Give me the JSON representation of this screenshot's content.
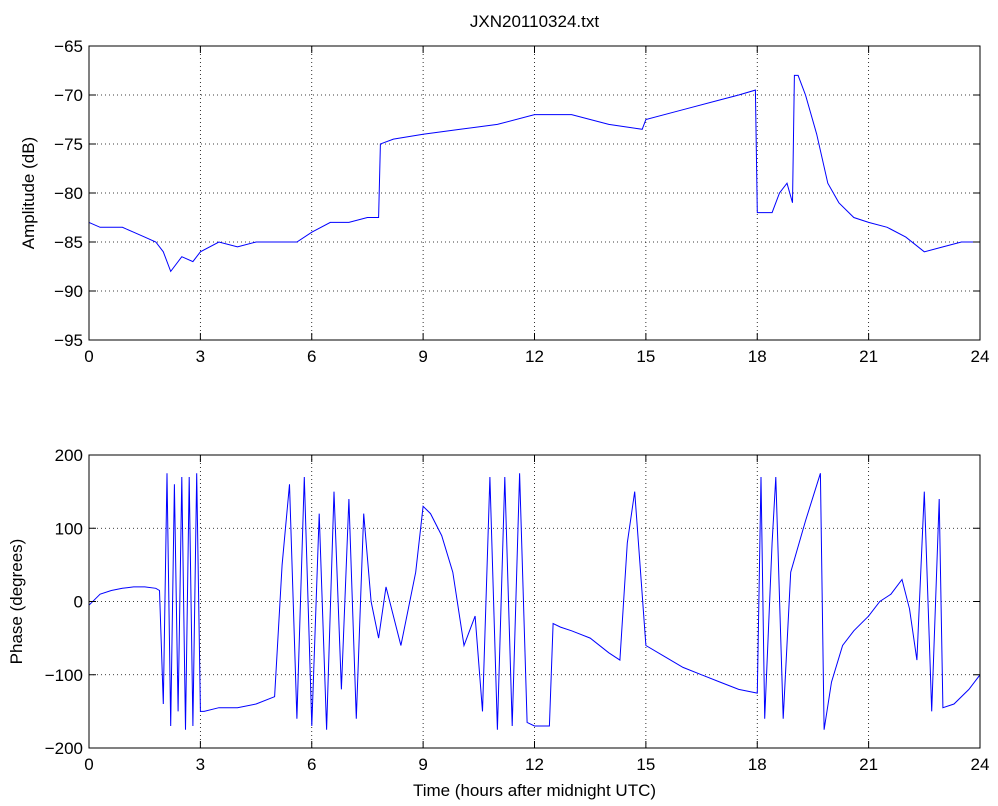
{
  "chart_data": [
    {
      "type": "line",
      "title": "JXN20110324.txt",
      "xlabel": "",
      "ylabel": "Amplitude (dB)",
      "xlim": [
        0,
        24
      ],
      "ylim": [
        -95,
        -65
      ],
      "xticks": [
        0,
        3,
        6,
        9,
        12,
        15,
        18,
        21,
        24
      ],
      "yticks": [
        -95,
        -90,
        -85,
        -80,
        -75,
        -70,
        -65
      ],
      "grid": "dotted",
      "color": "#0000ff",
      "series": [
        {
          "x": [
            0,
            0.3,
            0.6,
            0.9,
            1.2,
            1.5,
            1.8,
            2.0,
            2.2,
            2.5,
            2.8,
            3.0,
            3.5,
            4.0,
            4.5,
            5.0,
            5.3,
            5.6,
            6.0,
            6.5,
            7.0,
            7.5,
            7.8,
            7.85,
            8.2,
            9.0,
            10.0,
            11.0,
            12.0,
            13.0,
            14.0,
            14.9,
            15.0,
            16.0,
            17.0,
            17.5,
            17.95,
            18.0,
            18.2,
            18.4,
            18.6,
            18.8,
            18.95,
            19.0,
            19.1,
            19.3,
            19.6,
            19.9,
            20.2,
            20.6,
            21.0,
            21.5,
            22.0,
            22.5,
            23.0,
            23.5,
            24.0
          ],
          "y": [
            -83,
            -83.5,
            -83.5,
            -83.5,
            -84,
            -84.5,
            -85,
            -86,
            -88,
            -86.5,
            -87,
            -86,
            -85,
            -85.5,
            -85,
            -85,
            -85,
            -85,
            -84,
            -83,
            -83,
            -82.5,
            -82.5,
            -75,
            -74.5,
            -74,
            -73.5,
            -73,
            -72,
            -72,
            -73,
            -73.5,
            -72.5,
            -71.5,
            -70.5,
            -70,
            -69.5,
            -82,
            -82,
            -82,
            -80,
            -79,
            -81,
            -68,
            -68,
            -70,
            -74,
            -79,
            -81,
            -82.5,
            -83,
            -83.5,
            -84.5,
            -86,
            -85.5,
            -85,
            -85
          ]
        }
      ]
    },
    {
      "type": "line",
      "title": "",
      "xlabel": "Time (hours after midnight UTC)",
      "ylabel": "Phase (degrees)",
      "xlim": [
        0,
        24
      ],
      "ylim": [
        -200,
        200
      ],
      "xticks": [
        0,
        3,
        6,
        9,
        12,
        15,
        18,
        21,
        24
      ],
      "yticks": [
        -200,
        -100,
        0,
        100,
        200
      ],
      "grid": "dotted",
      "color": "#0000ff",
      "series": [
        {
          "x": [
            0,
            0.3,
            0.6,
            0.9,
            1.2,
            1.5,
            1.8,
            1.9,
            2.0,
            2.1,
            2.2,
            2.3,
            2.4,
            2.5,
            2.6,
            2.7,
            2.8,
            2.9,
            3.0,
            3.1,
            3.5,
            4.0,
            4.5,
            5.0,
            5.2,
            5.4,
            5.6,
            5.8,
            6.0,
            6.2,
            6.4,
            6.6,
            6.8,
            7.0,
            7.2,
            7.4,
            7.6,
            7.8,
            8.0,
            8.4,
            8.8,
            9.0,
            9.2,
            9.5,
            9.8,
            10.1,
            10.4,
            10.6,
            10.8,
            11.0,
            11.2,
            11.4,
            11.6,
            11.8,
            12.0,
            12.2,
            12.4,
            12.5,
            12.7,
            13.0,
            13.5,
            14.0,
            14.3,
            14.5,
            14.7,
            15.0,
            15.5,
            16.0,
            16.5,
            17.0,
            17.5,
            18.0,
            18.1,
            18.2,
            18.4,
            18.5,
            18.7,
            18.9,
            19.3,
            19.7,
            19.8,
            20.0,
            20.3,
            20.6,
            21.0,
            21.3,
            21.6,
            21.9,
            22.1,
            22.3,
            22.5,
            22.7,
            22.9,
            23.0,
            23.3,
            23.7,
            24.0
          ],
          "y": [
            -5,
            10,
            15,
            18,
            20,
            20,
            18,
            15,
            -140,
            175,
            -170,
            160,
            -150,
            170,
            -175,
            170,
            -170,
            175,
            -150,
            -150,
            -145,
            -145,
            -140,
            -130,
            50,
            160,
            -160,
            170,
            -170,
            120,
            -175,
            150,
            -120,
            140,
            -160,
            120,
            0,
            -50,
            20,
            -60,
            40,
            130,
            120,
            90,
            40,
            -60,
            -20,
            -150,
            170,
            -175,
            170,
            -170,
            175,
            -165,
            -170,
            -170,
            -170,
            -30,
            -35,
            -40,
            -50,
            -70,
            -80,
            80,
            150,
            -60,
            -75,
            -90,
            -100,
            -110,
            -120,
            -125,
            170,
            -160,
            80,
            170,
            -160,
            40,
            110,
            175,
            -175,
            -110,
            -60,
            -40,
            -20,
            0,
            10,
            30,
            -10,
            -80,
            150,
            -150,
            140,
            -145,
            -140,
            -120,
            -100
          ]
        }
      ]
    }
  ]
}
